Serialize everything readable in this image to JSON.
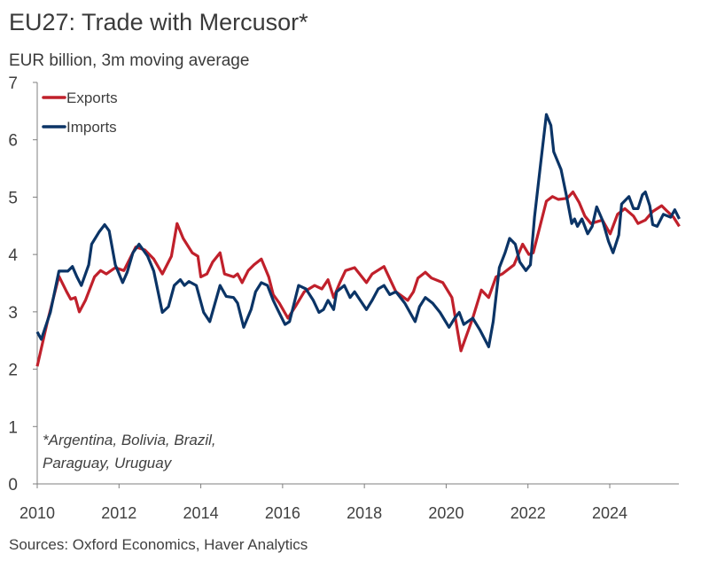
{
  "title": "EU27: Trade with Mercusor*",
  "subtitle": "EUR billion, 3m moving average",
  "sources": "Sources: Oxford Economics, Haver Analytics",
  "chart_data": {
    "type": "line",
    "title": "EU27: Trade with Mercusor*",
    "ylabel": "EUR billion, 3m moving average",
    "xlabel": "",
    "xlim": [
      2010,
      2025.69
    ],
    "ylim": [
      0,
      7
    ],
    "xticks": [
      "2010",
      "2012",
      "2014",
      "2016",
      "2018",
      "2020",
      "2022",
      "2024"
    ],
    "yticks": [
      "0",
      "1",
      "2",
      "3",
      "4",
      "5",
      "6",
      "7"
    ],
    "grid": false,
    "legend_position": "top-left",
    "annotation": [
      "*Argentina, Bolivia, Brazil,",
      "Paraguay, Uruguay"
    ],
    "series": [
      {
        "name": "Exports",
        "color": "#c0202b",
        "x": [
          2010.0,
          2010.25,
          2010.53,
          2010.72,
          2010.82,
          2010.93,
          2011.03,
          2011.18,
          2011.4,
          2011.55,
          2011.69,
          2011.91,
          2012.12,
          2012.41,
          2012.63,
          2012.85,
          2013.06,
          2013.28,
          2013.42,
          2013.57,
          2013.79,
          2013.93,
          2014.0,
          2014.15,
          2014.29,
          2014.47,
          2014.58,
          2014.8,
          2014.9,
          2015.01,
          2015.16,
          2015.3,
          2015.48,
          2015.66,
          2015.77,
          2015.92,
          2016.13,
          2016.31,
          2016.53,
          2016.78,
          2016.96,
          2017.11,
          2017.25,
          2017.4,
          2017.54,
          2017.76,
          2018.05,
          2018.19,
          2018.48,
          2018.77,
          2019.06,
          2019.2,
          2019.31,
          2019.49,
          2019.64,
          2019.92,
          2020.14,
          2020.36,
          2020.65,
          2020.86,
          2021.04,
          2021.22,
          2021.37,
          2021.66,
          2021.87,
          2022.02,
          2022.13,
          2022.45,
          2022.6,
          2022.74,
          2022.96,
          2023.1,
          2023.25,
          2023.39,
          2023.54,
          2023.82,
          2024.01,
          2024.19,
          2024.37,
          2024.58,
          2024.69,
          2024.87,
          2025.05,
          2025.27,
          2025.41,
          2025.56,
          2025.7
        ],
        "values": [
          2.05,
          2.83,
          3.62,
          3.35,
          3.22,
          3.25,
          3.0,
          3.2,
          3.61,
          3.72,
          3.66,
          3.77,
          3.72,
          4.13,
          4.08,
          3.92,
          3.66,
          3.97,
          4.54,
          4.28,
          4.03,
          3.97,
          3.61,
          3.66,
          3.87,
          4.03,
          3.66,
          3.61,
          3.66,
          3.51,
          3.72,
          3.82,
          3.92,
          3.61,
          3.3,
          3.15,
          2.89,
          3.09,
          3.35,
          3.46,
          3.4,
          3.56,
          3.25,
          3.51,
          3.72,
          3.77,
          3.51,
          3.66,
          3.79,
          3.35,
          3.2,
          3.35,
          3.59,
          3.69,
          3.59,
          3.51,
          3.25,
          2.32,
          2.89,
          3.38,
          3.25,
          3.61,
          3.66,
          3.82,
          4.18,
          4.0,
          4.03,
          4.93,
          5.01,
          4.96,
          4.98,
          5.09,
          4.91,
          4.67,
          4.54,
          4.6,
          4.36,
          4.7,
          4.8,
          4.67,
          4.54,
          4.6,
          4.75,
          4.85,
          4.75,
          4.65,
          4.49
        ]
      },
      {
        "name": "Imports",
        "color": "#0b3466",
        "x": [
          2010.0,
          2010.1,
          2010.32,
          2010.53,
          2010.75,
          2010.86,
          2010.97,
          2011.08,
          2011.26,
          2011.33,
          2011.51,
          2011.65,
          2011.76,
          2011.91,
          2012.09,
          2012.2,
          2012.34,
          2012.49,
          2012.7,
          2012.85,
          2013.06,
          2013.21,
          2013.35,
          2013.5,
          2013.6,
          2013.71,
          2013.89,
          2014.07,
          2014.22,
          2014.47,
          2014.62,
          2014.8,
          2014.9,
          2015.05,
          2015.23,
          2015.34,
          2015.48,
          2015.63,
          2015.77,
          2015.88,
          2016.06,
          2016.17,
          2016.39,
          2016.57,
          2016.75,
          2016.89,
          2017.0,
          2017.11,
          2017.25,
          2017.32,
          2017.51,
          2017.65,
          2017.76,
          2017.9,
          2018.05,
          2018.19,
          2018.34,
          2018.48,
          2018.62,
          2018.77,
          2018.99,
          2019.24,
          2019.35,
          2019.49,
          2019.67,
          2019.85,
          2020.07,
          2020.21,
          2020.32,
          2020.43,
          2020.65,
          2020.83,
          2021.04,
          2021.15,
          2021.3,
          2021.44,
          2021.55,
          2021.69,
          2021.8,
          2021.95,
          2022.06,
          2022.16,
          2022.31,
          2022.45,
          2022.56,
          2022.63,
          2022.81,
          2022.96,
          2023.07,
          2023.14,
          2023.21,
          2023.32,
          2023.46,
          2023.57,
          2023.68,
          2023.82,
          2023.97,
          2024.08,
          2024.22,
          2024.29,
          2024.47,
          2024.58,
          2024.69,
          2024.8,
          2024.87,
          2024.98,
          2025.05,
          2025.16,
          2025.31,
          2025.49,
          2025.59,
          2025.7
        ],
        "values": [
          2.65,
          2.52,
          2.99,
          3.71,
          3.71,
          3.79,
          3.61,
          3.46,
          3.82,
          4.18,
          4.39,
          4.52,
          4.41,
          3.82,
          3.51,
          3.69,
          4.03,
          4.18,
          3.97,
          3.71,
          2.99,
          3.09,
          3.46,
          3.56,
          3.46,
          3.53,
          3.46,
          2.99,
          2.83,
          3.46,
          3.27,
          3.25,
          3.15,
          2.73,
          3.04,
          3.35,
          3.51,
          3.46,
          3.2,
          3.04,
          2.78,
          2.83,
          3.46,
          3.4,
          3.2,
          2.99,
          3.04,
          3.2,
          3.04,
          3.35,
          3.46,
          3.25,
          3.35,
          3.2,
          3.04,
          3.2,
          3.4,
          3.46,
          3.3,
          3.35,
          3.15,
          2.83,
          3.09,
          3.25,
          3.15,
          2.99,
          2.73,
          2.89,
          2.99,
          2.78,
          2.89,
          2.68,
          2.39,
          2.83,
          3.77,
          4.03,
          4.28,
          4.18,
          3.87,
          3.72,
          3.82,
          4.65,
          5.58,
          6.44,
          6.25,
          5.79,
          5.48,
          4.96,
          4.54,
          4.62,
          4.49,
          4.62,
          4.36,
          4.49,
          4.83,
          4.6,
          4.23,
          4.03,
          4.34,
          4.88,
          5.01,
          4.8,
          4.8,
          5.04,
          5.09,
          4.85,
          4.52,
          4.49,
          4.7,
          4.65,
          4.78,
          4.62
        ]
      }
    ]
  }
}
